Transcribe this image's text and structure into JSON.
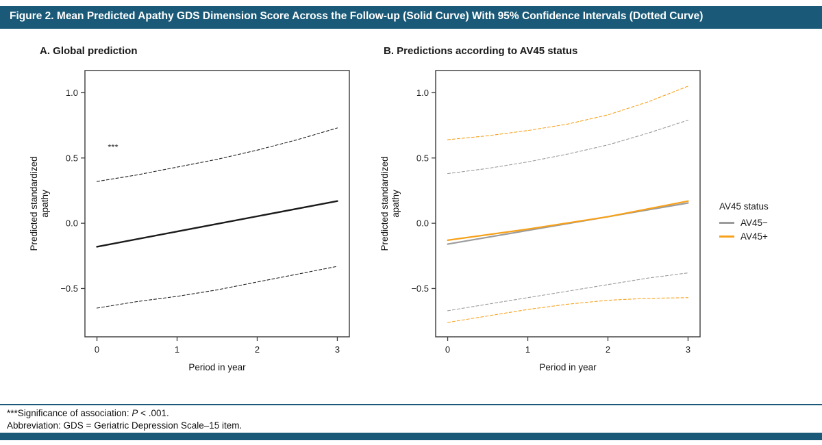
{
  "header": {
    "title": "Figure 2. Mean Predicted Apathy GDS Dimension Score Across the Follow-up (Solid Curve) With 95% Confidence Intervals (Dotted Curve)"
  },
  "colors": {
    "header_bar": "#1A5A78",
    "rule": "#1A5A78",
    "bottom_bar": "#1A5A78",
    "frame": "#3A3A3A",
    "av45_negative": "#9C9C9C",
    "av45_positive": "#F7A11A",
    "global_line": "#1A1A1A"
  },
  "legend": {
    "title": "AV45 status",
    "items": [
      {
        "label": "AV45−",
        "color": "#9C9C9C"
      },
      {
        "label": "AV45+",
        "color": "#F7A11A"
      }
    ]
  },
  "footnotes": {
    "significance_prefix": "***Significance of association: ",
    "significance_p": "P",
    "significance_suffix": " < .001.",
    "abbreviation": "Abbreviation: GDS = Geriatric Depression Scale–15 item."
  },
  "chart_data": [
    {
      "id": "global-prediction",
      "type": "line",
      "panel_label": "A. Global prediction",
      "xlabel": "Period in year",
      "ylabel_lines": [
        "Predicted standardized",
        "apathy"
      ],
      "xlim": [
        -0.15,
        3.15
      ],
      "ylim": [
        -0.87,
        1.17
      ],
      "xticks": [
        0,
        1,
        2,
        3
      ],
      "xtick_labels": [
        "0",
        "1",
        "2",
        "3"
      ],
      "yticks": [
        -0.5,
        0,
        0.5,
        1
      ],
      "ytick_labels": [
        "−0.5",
        "0.0",
        "0.5",
        "1.0"
      ],
      "annotations": [
        {
          "text": "***",
          "x": 0.2,
          "y": 0.56
        }
      ],
      "series": [
        {
          "name": "ci-upper",
          "style": "dashed",
          "color": "#222222",
          "width": 1.1,
          "x": [
            0,
            0.5,
            1,
            1.5,
            2,
            2.5,
            3
          ],
          "y": [
            0.32,
            0.37,
            0.43,
            0.49,
            0.56,
            0.64,
            0.73
          ]
        },
        {
          "name": "ci-lower",
          "style": "dashed",
          "color": "#222222",
          "width": 1.1,
          "x": [
            0,
            0.5,
            1,
            1.5,
            2,
            2.5,
            3
          ],
          "y": [
            -0.65,
            -0.6,
            -0.56,
            -0.51,
            -0.45,
            -0.39,
            -0.33
          ]
        },
        {
          "name": "mean",
          "style": "solid",
          "color": "#1A1A1A",
          "width": 2.4,
          "x": [
            0,
            3
          ],
          "y": [
            -0.18,
            0.17
          ]
        }
      ]
    },
    {
      "id": "av45-status",
      "type": "line",
      "panel_label": "B. Predictions according to AV45 status",
      "xlabel": "Period in year",
      "ylabel_lines": [
        "Predicted standardized",
        "apathy"
      ],
      "xlim": [
        -0.15,
        3.15
      ],
      "ylim": [
        -0.87,
        1.17
      ],
      "xticks": [
        0,
        1,
        2,
        3
      ],
      "xtick_labels": [
        "0",
        "1",
        "2",
        "3"
      ],
      "yticks": [
        -0.5,
        0,
        0.5,
        1
      ],
      "ytick_labels": [
        "−0.5",
        "0.0",
        "0.5",
        "1.0"
      ],
      "annotations": [],
      "series": [
        {
          "name": "av45neg-ci-upper",
          "group": "AV45−",
          "style": "dashed",
          "color": "#9C9C9C",
          "width": 1.1,
          "x": [
            0,
            0.5,
            1,
            1.5,
            2,
            2.5,
            3
          ],
          "y": [
            0.38,
            0.42,
            0.47,
            0.53,
            0.6,
            0.69,
            0.79
          ]
        },
        {
          "name": "av45neg-ci-lower",
          "group": "AV45−",
          "style": "dashed",
          "color": "#9C9C9C",
          "width": 1.1,
          "x": [
            0,
            0.5,
            1,
            1.5,
            2,
            2.5,
            3
          ],
          "y": [
            -0.67,
            -0.62,
            -0.57,
            -0.52,
            -0.47,
            -0.42,
            -0.38
          ]
        },
        {
          "name": "av45pos-ci-upper",
          "group": "AV45+",
          "style": "dashed",
          "color": "#F7A11A",
          "width": 1.1,
          "x": [
            0,
            0.5,
            1,
            1.5,
            2,
            2.5,
            3
          ],
          "y": [
            0.64,
            0.67,
            0.71,
            0.76,
            0.83,
            0.93,
            1.05
          ]
        },
        {
          "name": "av45pos-ci-lower",
          "group": "AV45+",
          "style": "dashed",
          "color": "#F7A11A",
          "width": 1.1,
          "x": [
            0,
            0.5,
            1,
            1.5,
            2,
            2.5,
            3
          ],
          "y": [
            -0.76,
            -0.71,
            -0.66,
            -0.62,
            -0.59,
            -0.575,
            -0.57
          ]
        },
        {
          "name": "av45neg-mean",
          "group": "AV45−",
          "style": "solid",
          "color": "#9C9C9C",
          "width": 2.2,
          "x": [
            0,
            3
          ],
          "y": [
            -0.16,
            0.155
          ]
        },
        {
          "name": "av45pos-mean",
          "group": "AV45+",
          "style": "solid",
          "color": "#F7A11A",
          "width": 2.2,
          "x": [
            0,
            1,
            2,
            3
          ],
          "y": [
            -0.13,
            -0.045,
            0.05,
            0.17
          ]
        }
      ]
    }
  ]
}
